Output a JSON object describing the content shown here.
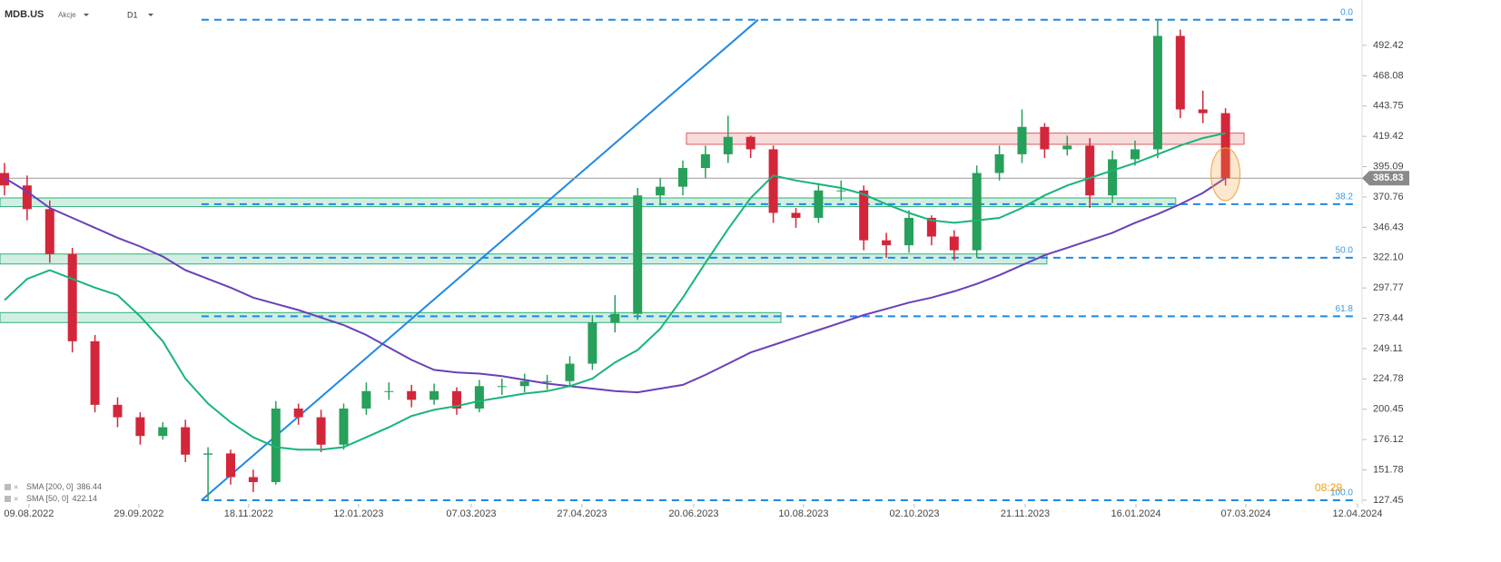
{
  "chart_data": {
    "type": "candlestick",
    "symbol": "MDB.US",
    "asset_class": "Akcje",
    "interval": "D1",
    "time_label": "08:29",
    "up_color": "#26a05a",
    "down_color": "#d3263a",
    "xlim": [
      -0.2,
      60.04
    ],
    "xticks": [
      {
        "value": 1.08,
        "label": "09.08.2022"
      },
      {
        "value": 5.94,
        "label": "29.09.2022"
      },
      {
        "value": 10.8,
        "label": "18.11.2022"
      },
      {
        "value": 15.66,
        "label": "12.01.2023"
      },
      {
        "value": 20.64,
        "label": "07.03.2023"
      },
      {
        "value": 25.54,
        "label": "27.04.2023"
      },
      {
        "value": 30.48,
        "label": "20.06.2023"
      },
      {
        "value": 35.34,
        "label": "10.08.2023"
      },
      {
        "value": 40.24,
        "label": "02.10.2023"
      },
      {
        "value": 45.14,
        "label": "21.11.2023"
      },
      {
        "value": 50.04,
        "label": "16.01.2024"
      },
      {
        "value": 54.9,
        "label": "07.03.2024"
      },
      {
        "value": 59.84,
        "label": "12.04.2024"
      }
    ],
    "ylim": [
      124.5,
      528.8
    ],
    "yticks": [
      492.42,
      468.08,
      443.75,
      419.42,
      395.09,
      370.76,
      346.43,
      {
        "value": 322.1,
        "label": "322.10"
      },
      297.77,
      273.44,
      249.11,
      224.78,
      200.45,
      176.12,
      151.78,
      127.45
    ],
    "candles": {
      "open": [
        390,
        380,
        361,
        325,
        255,
        204,
        194,
        179,
        186,
        164,
        165,
        146,
        142,
        201,
        194,
        172,
        201,
        215,
        215,
        208,
        215,
        201,
        219,
        219,
        223,
        223,
        237,
        270,
        277,
        372,
        379,
        394,
        405,
        419,
        409,
        358,
        354,
        376,
        376,
        336,
        332,
        354,
        339,
        328,
        390,
        405,
        427,
        409,
        412,
        372,
        401,
        409,
        500,
        441,
        438
      ],
      "high": [
        398,
        388,
        368,
        330,
        260,
        210,
        198,
        190,
        192,
        170,
        168,
        152,
        207,
        205,
        200,
        205,
        222,
        222,
        220,
        221,
        218,
        224,
        225,
        229,
        228,
        243,
        276,
        292,
        378,
        386,
        400,
        412,
        436,
        420,
        412,
        362,
        382,
        384,
        380,
        342,
        360,
        356,
        344,
        396,
        412,
        441,
        430,
        420,
        418,
        408,
        416,
        512,
        505,
        456,
        442
      ],
      "low": [
        372,
        352,
        318,
        246,
        198,
        186,
        172,
        176,
        158,
        128,
        140,
        134,
        140,
        188,
        166,
        168,
        196,
        208,
        202,
        204,
        196,
        198,
        212,
        214,
        216,
        218,
        232,
        262,
        272,
        364,
        372,
        386,
        398,
        402,
        350,
        346,
        350,
        368,
        328,
        322,
        326,
        332,
        320,
        322,
        384,
        398,
        402,
        404,
        362,
        366,
        396,
        402,
        434,
        430,
        380
      ],
      "close": [
        380,
        361,
        325,
        255,
        204,
        194,
        179,
        186,
        164,
        165,
        146,
        142,
        201,
        194,
        172,
        201,
        215,
        215,
        208,
        215,
        201,
        219,
        219,
        223,
        223,
        237,
        270,
        277,
        372,
        379,
        394,
        405,
        419,
        409,
        358,
        354,
        376,
        376,
        336,
        332,
        354,
        339,
        328,
        390,
        405,
        427,
        409,
        412,
        372,
        401,
        409,
        500,
        441,
        438,
        385.83
      ]
    },
    "series": [
      {
        "name": "SMA [200, 0]",
        "color": "#6a3fb8",
        "last_value": 386.44,
        "values": [
          386,
          375,
          362,
          354,
          346,
          338,
          331,
          323,
          312,
          305,
          298,
          290,
          285,
          280,
          274,
          268,
          260,
          250,
          240,
          232,
          230,
          229,
          227,
          224,
          221,
          219,
          217,
          215,
          214,
          217,
          220,
          228,
          237,
          246,
          252,
          258,
          264,
          270,
          276,
          281,
          286,
          290,
          295,
          301,
          308,
          316,
          324,
          330,
          336,
          342,
          350,
          357,
          365,
          374,
          386
        ]
      },
      {
        "name": "SMA [50, 0]",
        "color": "#18b47c",
        "last_value": 422.14,
        "values": [
          288,
          305,
          312,
          305,
          298,
          292,
          275,
          255,
          225,
          205,
          190,
          178,
          170,
          168,
          168,
          170,
          178,
          186,
          195,
          200,
          203,
          207,
          210,
          213,
          215,
          219,
          225,
          238,
          248,
          265,
          290,
          318,
          345,
          370,
          388,
          384,
          381,
          378,
          373,
          365,
          358,
          352,
          350,
          352,
          354,
          362,
          372,
          380,
          386,
          392,
          398,
          405,
          412,
          418,
          422
        ]
      }
    ],
    "fib_levels": [
      {
        "label": "0.0",
        "price": 513
      },
      {
        "label": "38.2",
        "price": 365
      },
      {
        "label": "50.0",
        "price": 322
      },
      {
        "label": "61.8",
        "price": 275
      },
      {
        "label": "100.0",
        "price": 127.45
      }
    ],
    "fib_x": [
      8.71,
      59.64
    ],
    "zones": [
      {
        "low": 413,
        "high": 422,
        "x0": 30.16,
        "x1": 54.82,
        "color": "#e05a5a"
      },
      {
        "low": 363,
        "high": 370,
        "x0": -0.2,
        "x1": 51.8,
        "color": "#2fb07a"
      },
      {
        "low": 317,
        "high": 325,
        "x0": -0.2,
        "x1": 46.1,
        "color": "#2fb07a"
      },
      {
        "low": 270,
        "high": 278,
        "x0": -0.2,
        "x1": 34.34,
        "color": "#2fb07a"
      }
    ],
    "trend_line": {
      "x": [
        8.71,
        33.33
      ],
      "y": [
        127.45,
        513
      ],
      "color": "#1e88e5"
    },
    "current_price": 385.83,
    "highlight": {
      "x": 54,
      "y": 389
    }
  }
}
